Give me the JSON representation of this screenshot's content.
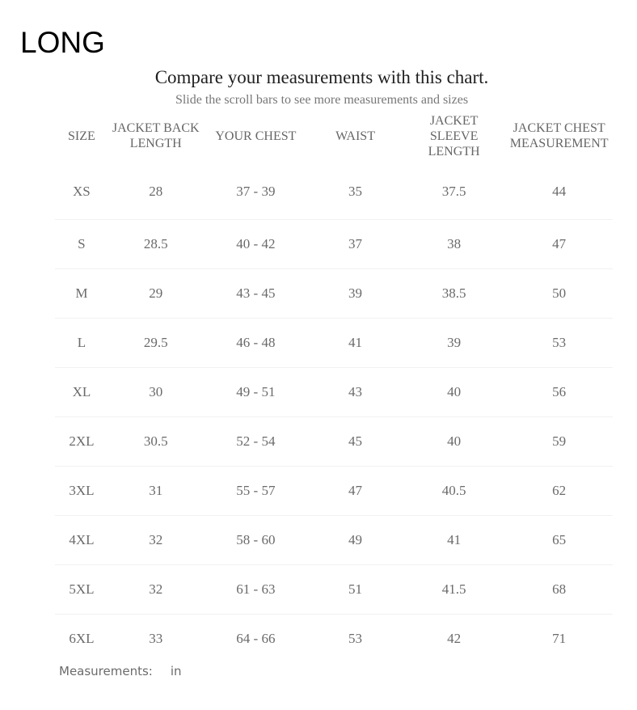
{
  "fit_label": "LONG",
  "chart": {
    "title": "Compare your measurements with this chart.",
    "subtitle": "Slide the scroll bars to see more measurements and sizes"
  },
  "table": {
    "columns": [
      "SIZE",
      "JACKET BACK LENGTH",
      "YOUR CHEST",
      "WAIST",
      "JACKET SLEEVE LENGTH",
      "JACKET CHEST MEASUREMENT"
    ],
    "rows": [
      [
        "XS",
        "28",
        "37 - 39",
        "35",
        "37.5",
        "44"
      ],
      [
        "S",
        "28.5",
        "40 - 42",
        "37",
        "38",
        "47"
      ],
      [
        "M",
        "29",
        "43 - 45",
        "39",
        "38.5",
        "50"
      ],
      [
        "L",
        "29.5",
        "46 - 48",
        "41",
        "39",
        "53"
      ],
      [
        "XL",
        "30",
        "49 - 51",
        "43",
        "40",
        "56"
      ],
      [
        "2XL",
        "30.5",
        "52 - 54",
        "45",
        "40",
        "59"
      ],
      [
        "3XL",
        "31",
        "55 - 57",
        "47",
        "40.5",
        "62"
      ],
      [
        "4XL",
        "32",
        "58 - 60",
        "49",
        "41",
        "65"
      ],
      [
        "5XL",
        "32",
        "61 - 63",
        "51",
        "41.5",
        "68"
      ],
      [
        "6XL",
        "33",
        "64 - 66",
        "53",
        "42",
        "71"
      ]
    ]
  },
  "footer": {
    "label": "Measurements:",
    "unit": "in"
  }
}
